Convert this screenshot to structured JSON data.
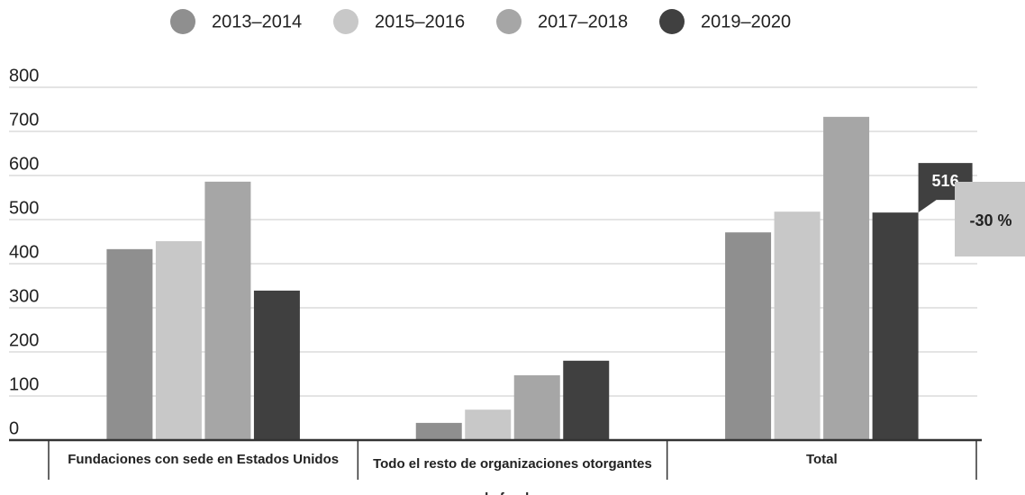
{
  "chart_data": {
    "type": "bar",
    "categories": [
      "Fundaciones con sede en Estados Unidos",
      "Todo el resto de organizaciones otorgantes de fondos",
      "Total"
    ],
    "series": [
      {
        "name": "2013–2014",
        "color": "#8f8f8f",
        "values": [
          433,
          39,
          471
        ]
      },
      {
        "name": "2015–2016",
        "color": "#c8c8c8",
        "values": [
          451,
          69,
          518
        ]
      },
      {
        "name": "2017–2018",
        "color": "#a6a6a6",
        "values": [
          586,
          147,
          733
        ]
      },
      {
        "name": "2019–2020",
        "color": "#404040",
        "values": [
          339,
          180,
          516
        ]
      }
    ],
    "ylim": [
      0,
      800
    ],
    "yticks": [
      0,
      100,
      200,
      300,
      400,
      500,
      600,
      700,
      800
    ],
    "grid": true,
    "legend": "top",
    "annotations": [
      {
        "text": "-30 %"
      }
    ]
  }
}
